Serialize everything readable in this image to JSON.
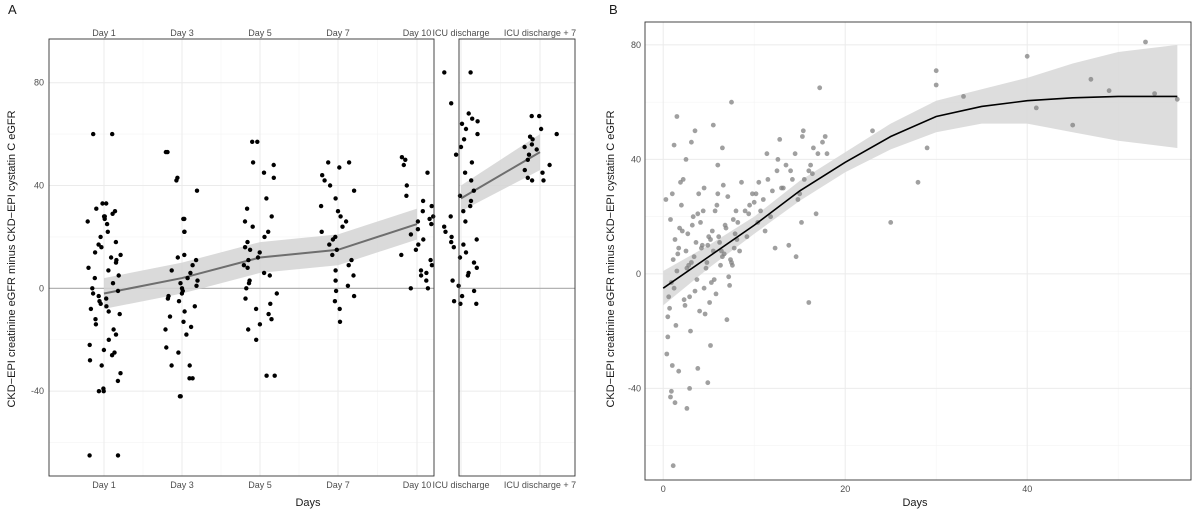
{
  "chart_data": [
    {
      "panel": "A",
      "type": "scatter",
      "xlabel": "Days",
      "ylabel": "CKD−EPI creatinine eGFR minus CKD−EPI cystatin C eGFR",
      "yticks": [
        -40,
        0,
        40,
        80
      ],
      "ylim": [
        -73,
        97
      ],
      "reference_line_y": 0,
      "facets": [
        {
          "categories": [
            "Day 1",
            "Day 3",
            "Day 5",
            "Day 7",
            "Day 10"
          ],
          "smooth": {
            "x": [
              "Day 1",
              "Day 3",
              "Day 5",
              "Day 7",
              "Day 10"
            ],
            "y": [
              -2,
              4,
              12,
              15,
              25
            ],
            "lower": [
              -8,
              -2,
              6,
              9,
              19
            ],
            "upper": [
              4,
              10,
              18,
              21,
              31
            ]
          },
          "points": {
            "Day 1": [
              60,
              60,
              33,
              33,
              31,
              30,
              29,
              28,
              28,
              27,
              26,
              25,
              22,
              20,
              18,
              17,
              16,
              14,
              13,
              12,
              11,
              10,
              8,
              7,
              5,
              4,
              2,
              0,
              -1,
              -2,
              -3,
              -4,
              -5,
              -6,
              -7,
              -8,
              -9,
              -10,
              -12,
              -14,
              -16,
              -18,
              -20,
              -22,
              -24,
              -25,
              -26,
              -28,
              -30,
              -33,
              -36,
              -39,
              -40,
              -40,
              -65,
              -65
            ],
            "Day 3": [
              53,
              53,
              43,
              42,
              38,
              27,
              27,
              22,
              22,
              13,
              12,
              11,
              9,
              7,
              6,
              4,
              3,
              2,
              1,
              0,
              -1,
              -2,
              -3,
              -4,
              -5,
              -7,
              -9,
              -11,
              -13,
              -15,
              -16,
              -18,
              -23,
              -25,
              -30,
              -30,
              -35,
              -35,
              -42,
              -42
            ],
            "Day 5": [
              57,
              57,
              49,
              48,
              45,
              43,
              35,
              31,
              28,
              26,
              24,
              22,
              20,
              18,
              16,
              15,
              14,
              12,
              11,
              9,
              8,
              6,
              5,
              3,
              2,
              0,
              -2,
              -4,
              -6,
              -8,
              -10,
              -12,
              -14,
              -16,
              -20,
              -34,
              -34
            ],
            "Day 7": [
              49,
              49,
              47,
              44,
              42,
              40,
              38,
              35,
              32,
              30,
              28,
              26,
              24,
              22,
              20,
              19,
              17,
              15,
              13,
              11,
              9,
              7,
              5,
              3,
              1,
              -1,
              -3,
              -5,
              -8,
              -13
            ],
            "Day 10": [
              51,
              50,
              48,
              45,
              40,
              36,
              34,
              32,
              30,
              28,
              27,
              26,
              25,
              23,
              21,
              19,
              17,
              15,
              13,
              11,
              9,
              7,
              6,
              5,
              3,
              0,
              0
            ]
          }
        },
        {
          "categories": [
            "ICU discharge",
            "ICU discharge + 7"
          ],
          "smooth": {
            "x": [
              "ICU discharge",
              "ICU discharge + 7"
            ],
            "y": [
              35,
              53
            ],
            "lower": [
              30,
              46
            ],
            "upper": [
              40,
              60
            ]
          },
          "points": {
            "ICU discharge": [
              84,
              84,
              72,
              68,
              66,
              65,
              64,
              62,
              60,
              58,
              55,
              52,
              49,
              45,
              42,
              38,
              36,
              34,
              32,
              30,
              28,
              26,
              24,
              22,
              20,
              19,
              18,
              17,
              16,
              14,
              12,
              10,
              8,
              6,
              5,
              3,
              1,
              -1,
              -3,
              -5,
              -6,
              -6
            ],
            "ICU discharge + 7": [
              67,
              67,
              62,
              60,
              59,
              58,
              56,
              55,
              54,
              52,
              50,
              48,
              46,
              45,
              43,
              42,
              42
            ]
          }
        }
      ]
    },
    {
      "panel": "B",
      "type": "scatter",
      "xlabel": "Days",
      "ylabel": "CKD−EPI creatinine eGFR minus CKD−EPI cystatin C eGFR",
      "xlim": [
        -2,
        58
      ],
      "ylim": [
        -72,
        88
      ],
      "xticks": [
        0,
        20,
        40
      ],
      "yticks": [
        -40,
        0,
        40,
        80
      ],
      "smooth": {
        "x": [
          0,
          5,
          10,
          15,
          20,
          25,
          30,
          35,
          40,
          45,
          50,
          56.5
        ],
        "y": [
          -5,
          6,
          17,
          29,
          39,
          48,
          55,
          58.5,
          60.5,
          61.5,
          62,
          62
        ],
        "lower": [
          -11,
          2,
          14,
          25.5,
          35.5,
          43.5,
          49.5,
          52.5,
          52.5,
          49.5,
          46.5,
          44
        ],
        "upper": [
          1,
          10,
          20,
          32.5,
          42.5,
          52.5,
          60.5,
          64.5,
          68.5,
          73.5,
          77.5,
          80
        ]
      },
      "points": {
        "x": [
          0.5,
          0.9,
          1.3,
          1.7,
          2.1,
          2.5,
          2.9,
          3.3,
          3.7,
          4.1,
          4.5,
          4.9,
          5.3,
          5.7,
          6.1,
          6.5,
          6.9,
          7.3,
          7.7,
          8.1,
          0.3,
          0.7,
          1.1,
          1.5,
          1.9,
          2.3,
          2.7,
          3.1,
          3.5,
          3.9,
          4.3,
          4.7,
          5.1,
          5.5,
          5.9,
          6.3,
          6.7,
          7.1,
          7.5,
          7.9,
          0.6,
          1.0,
          1.4,
          1.8,
          2.2,
          2.6,
          3.0,
          3.4,
          3.8,
          4.2,
          4.6,
          5.0,
          5.4,
          5.8,
          6.2,
          6.6,
          7.0,
          7.4,
          7.8,
          8.2,
          0.8,
          1.2,
          1.6,
          2.0,
          2.4,
          2.8,
          3.2,
          3.6,
          4.0,
          4.4,
          4.8,
          5.2,
          5.6,
          6.0,
          6.4,
          6.8,
          7.2,
          7.6,
          8.0,
          8.4,
          1.5,
          3.5,
          5.5,
          7.5,
          2.5,
          4.5,
          6.5,
          0.5,
          0.4,
          1.0,
          0.9,
          1.3,
          0.8,
          1.7,
          1.1,
          2.6,
          2.9,
          3.8,
          4.9,
          5.2,
          1.2,
          3.1,
          6.0,
          9.0,
          9.5,
          10.0,
          10.5,
          11.0,
          11.5,
          12.0,
          12.5,
          13.0,
          13.5,
          14.0,
          14.5,
          15.0,
          15.5,
          16.0,
          16.5,
          17.0,
          17.5,
          18.0,
          9.2,
          10.4,
          11.8,
          13.2,
          14.8,
          16.2,
          17.8,
          9.8,
          11.2,
          12.6,
          14.2,
          15.4,
          10.7,
          12.3,
          13.8,
          15.2,
          16.8,
          8.6,
          9.4,
          10.2,
          11.4,
          12.8,
          14.6,
          16.4,
          15.3,
          16.0,
          17.2,
          23.0,
          25.0,
          28.0,
          29.0,
          30.0,
          30.0,
          33.0,
          40.0,
          41.0,
          45.0,
          47.0,
          49.0,
          53.0,
          54.0,
          56.5
        ],
        "y": [
          -15,
          -3,
          12,
          9,
          15,
          8,
          -8,
          20,
          -2,
          18,
          -5,
          10,
          -3,
          22,
          13,
          6,
          16,
          -4,
          19,
          12,
          26,
          -12,
          5,
          1,
          32,
          -9,
          14,
          4,
          -6,
          28,
          10,
          2,
          -10,
          8,
          24,
          3,
          7,
          27,
          4,
          14,
          -8,
          28,
          -18,
          16,
          33,
          2,
          -20,
          6,
          21,
          9,
          -14,
          13,
          15,
          -7,
          11,
          31,
          -16,
          5,
          9,
          18,
          19,
          -5,
          7,
          24,
          -11,
          3,
          17,
          11,
          -13,
          22,
          4,
          12,
          -2,
          28,
          8,
          17,
          -1,
          3,
          22,
          8,
          55,
          50,
          52,
          60,
          40,
          30,
          44,
          -22,
          -28,
          -32,
          -41,
          -45,
          -43,
          -34,
          -67,
          -47,
          -40,
          -33,
          -38,
          -25,
          45,
          46,
          38,
          22,
          24,
          25,
          32,
          26,
          33,
          29,
          36,
          30,
          38,
          36,
          42,
          28,
          33,
          36,
          44,
          42,
          46,
          42,
          13,
          18,
          20,
          30,
          26,
          38,
          48,
          28,
          15,
          40,
          33,
          50,
          22,
          9,
          10,
          18,
          21,
          32,
          21,
          28,
          42,
          47,
          6,
          35,
          48,
          -10,
          65,
          50,
          18,
          32,
          44,
          71,
          66,
          62,
          76,
          58,
          52,
          68,
          64,
          81,
          63,
          61
        ]
      }
    }
  ]
}
